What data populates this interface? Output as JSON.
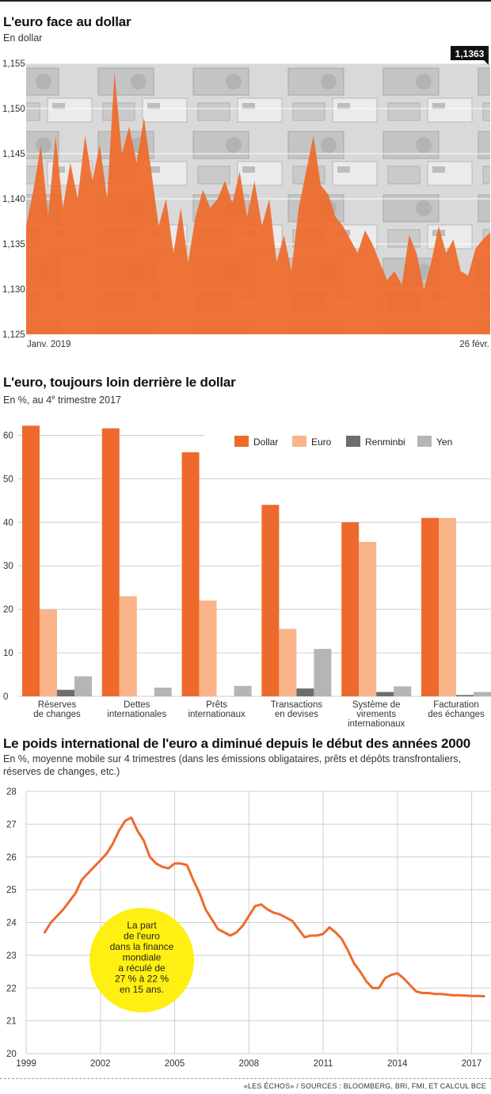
{
  "footer": "«LES ÉCHOS» / SOURCES : BLOOMBERG, BRI, FMI, ET CALCUL BCE",
  "colors": {
    "dollar": "#ee6a2c",
    "euro": "#f9b489",
    "renminbi": "#6d6d6d",
    "yen": "#b5b5b5",
    "accent": "#ee6a2c",
    "callout": "#ffef12"
  },
  "chart_data": [
    {
      "type": "area",
      "title": "L'euro face au dollar",
      "subtitle": "En dollar",
      "ylim": [
        1.125,
        1.155
      ],
      "yticks": [
        "1,155",
        "1,150",
        "1,145",
        "1,140",
        "1,135",
        "1,130",
        "1,125"
      ],
      "x_labels": [
        "Janv. 2019",
        "26 févr."
      ],
      "last_value_label": "1,1363",
      "background_icon": "banknotes-photo",
      "values": [
        1.137,
        1.141,
        1.146,
        1.138,
        1.147,
        1.139,
        1.144,
        1.14,
        1.147,
        1.142,
        1.146,
        1.14,
        1.154,
        1.145,
        1.148,
        1.144,
        1.149,
        1.143,
        1.137,
        1.14,
        1.134,
        1.139,
        1.133,
        1.138,
        1.141,
        1.139,
        1.14,
        1.142,
        1.1395,
        1.143,
        1.138,
        1.142,
        1.137,
        1.14,
        1.133,
        1.136,
        1.132,
        1.139,
        1.143,
        1.147,
        1.1415,
        1.1405,
        1.138,
        1.137,
        1.1355,
        1.134,
        1.1365,
        1.135,
        1.133,
        1.131,
        1.132,
        1.1305,
        1.136,
        1.134,
        1.13,
        1.133,
        1.137,
        1.134,
        1.1355,
        1.132,
        1.1315,
        1.1345,
        1.1355,
        1.1363
      ]
    },
    {
      "type": "bar",
      "title": "L'euro, toujours loin derrière le dollar",
      "subtitle_pre": "En %, au 4",
      "subtitle_sup": "e",
      "subtitle_post": " trimestre 2017",
      "ylim": [
        0,
        65
      ],
      "yticks": [
        0,
        10,
        20,
        30,
        40,
        50,
        60
      ],
      "categories": [
        [
          "Réserves",
          "de changes"
        ],
        [
          "Dettes",
          "internationales"
        ],
        [
          "Prêts",
          "internationaux"
        ],
        [
          "Transactions",
          "en devises"
        ],
        [
          "Système de",
          "virements",
          "internationaux"
        ],
        [
          "Facturation",
          "des échanges"
        ]
      ],
      "series": [
        {
          "name": "Dollar",
          "values": [
            62.2,
            61.6,
            56.1,
            44.0,
            40.0,
            41.0
          ]
        },
        {
          "name": "Euro",
          "values": [
            20.0,
            23.0,
            22.0,
            15.5,
            35.5,
            41.0
          ]
        },
        {
          "name": "Renminbi",
          "values": [
            1.5,
            0.0,
            0.0,
            1.8,
            1.0,
            0.3
          ]
        },
        {
          "name": "Yen",
          "values": [
            4.6,
            2.0,
            2.4,
            10.9,
            2.3,
            1.0
          ]
        }
      ],
      "legend_placement": "top-right"
    },
    {
      "type": "line",
      "title": "Le poids international de l'euro a diminué depuis le début des années 2000",
      "subtitle": "En %, moyenne mobile sur 4 trimestres (dans les émissions obligataires, prêts et dépôts transfrontaliers, réserves de changes, etc.)",
      "ylim": [
        20,
        28
      ],
      "yticks": [
        20,
        21,
        22,
        23,
        24,
        25,
        26,
        27,
        28
      ],
      "xlim": [
        1999,
        2017.75
      ],
      "xticks": [
        1999,
        2002,
        2005,
        2008,
        2011,
        2014,
        2017
      ],
      "x": [
        1999.75,
        2000.0,
        2000.5,
        2001.0,
        2001.25,
        2001.5,
        2001.75,
        2002.0,
        2002.25,
        2002.5,
        2002.75,
        2003.0,
        2003.25,
        2003.5,
        2003.75,
        2004.0,
        2004.25,
        2004.5,
        2004.75,
        2005.0,
        2005.25,
        2005.5,
        2005.75,
        2006.0,
        2006.25,
        2006.5,
        2006.75,
        2007.0,
        2007.25,
        2007.5,
        2007.75,
        2008.0,
        2008.25,
        2008.5,
        2008.75,
        2009.0,
        2009.25,
        2009.5,
        2009.75,
        2010.0,
        2010.25,
        2010.5,
        2010.75,
        2011.0,
        2011.25,
        2011.5,
        2011.75,
        2012.0,
        2012.25,
        2012.5,
        2012.75,
        2013.0,
        2013.25,
        2013.5,
        2013.75,
        2014.0,
        2014.25,
        2014.5,
        2014.75,
        2015.0,
        2015.25,
        2015.5,
        2015.75,
        2016.0,
        2016.25,
        2016.5,
        2016.75,
        2017.0,
        2017.25,
        2017.5
      ],
      "values": [
        23.7,
        24.0,
        24.4,
        24.9,
        25.3,
        25.5,
        25.7,
        25.9,
        26.1,
        26.4,
        26.8,
        27.1,
        27.2,
        26.8,
        26.5,
        26.0,
        25.8,
        25.7,
        25.65,
        25.8,
        25.8,
        25.75,
        25.3,
        24.9,
        24.4,
        24.1,
        23.8,
        23.7,
        23.6,
        23.7,
        23.9,
        24.2,
        24.5,
        24.55,
        24.4,
        24.3,
        24.25,
        24.15,
        24.05,
        23.8,
        23.55,
        23.6,
        23.6,
        23.65,
        23.85,
        23.7,
        23.5,
        23.15,
        22.75,
        22.5,
        22.2,
        22.0,
        22.0,
        22.3,
        22.4,
        22.45,
        22.3,
        22.1,
        21.9,
        21.85,
        21.85,
        21.82,
        21.82,
        21.8,
        21.78,
        21.78,
        21.77,
        21.76,
        21.76,
        21.75
      ],
      "annotation": [
        "La part",
        "de l'euro",
        "dans la finance",
        "mondiale",
        "a réculé de",
        "27 % à 22 %",
        "en 15 ans."
      ]
    }
  ]
}
